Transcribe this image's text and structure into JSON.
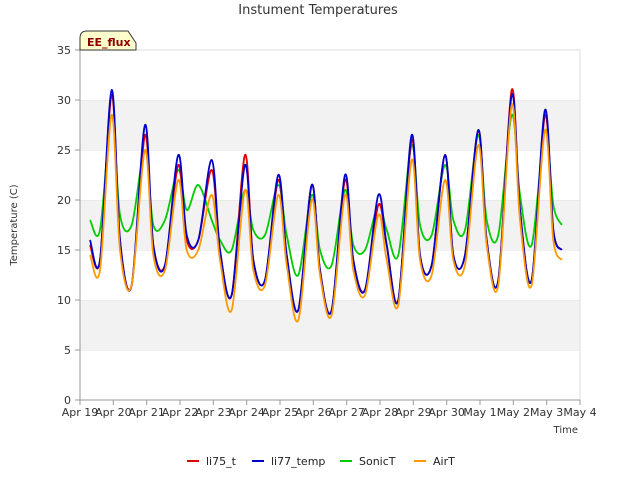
{
  "chart_data": {
    "type": "line",
    "title": "Instument Temperatures",
    "xlabel": "Time",
    "ylabel": "Temperature (C)",
    "badge": "EE_flux",
    "ylim": [
      0,
      35
    ],
    "yticks": [
      0,
      5,
      10,
      15,
      20,
      25,
      30,
      35
    ],
    "xlim": [
      0,
      15
    ],
    "xticks": [
      0,
      1,
      2,
      3,
      4,
      5,
      6,
      7,
      8,
      9,
      10,
      11,
      12,
      13,
      14,
      15
    ],
    "xtick_labels": [
      "Apr 19",
      "Apr 20",
      "Apr 21",
      "Apr 22",
      "Apr 23",
      "Apr 24",
      "Apr 25",
      "Apr 26",
      "Apr 27",
      "Apr 28",
      "Apr 29",
      "Apr 30",
      "May 1",
      "May 2",
      "May 3",
      "May 4"
    ],
    "grid": "horizontal bands",
    "legend_position": "bottom",
    "x": [
      0.3,
      0.6,
      0.95,
      1.2,
      1.55,
      1.95,
      2.2,
      2.55,
      2.95,
      3.2,
      3.55,
      3.95,
      4.2,
      4.55,
      4.95,
      5.2,
      5.55,
      5.95,
      6.2,
      6.55,
      6.95,
      7.2,
      7.55,
      7.95,
      8.2,
      8.55,
      8.95,
      9.2,
      9.55,
      9.95,
      10.2,
      10.55,
      10.95,
      11.2,
      11.55,
      11.95,
      12.2,
      12.55,
      12.95,
      13.2,
      13.55,
      13.95,
      14.2,
      14.45
    ],
    "series": [
      {
        "name": "li75_t",
        "color": "#dd0000",
        "values": [
          15.5,
          14.0,
          30.5,
          16.0,
          11.5,
          26.5,
          15.5,
          13.5,
          23.5,
          16.0,
          16.0,
          23.0,
          15.0,
          10.5,
          24.5,
          14.0,
          12.0,
          22.0,
          14.5,
          9.0,
          21.5,
          13.0,
          9.0,
          22.0,
          14.0,
          11.0,
          19.5,
          15.5,
          10.0,
          26.0,
          14.5,
          13.5,
          24.5,
          14.5,
          14.5,
          27.0,
          16.0,
          12.0,
          31.0,
          19.0,
          12.0,
          28.5,
          17.0,
          15.0
        ]
      },
      {
        "name": "li77_temp",
        "color": "#0000cc",
        "values": [
          16.0,
          14.0,
          31.0,
          16.0,
          11.5,
          27.5,
          15.5,
          13.5,
          24.5,
          16.5,
          16.0,
          24.0,
          15.0,
          10.5,
          23.5,
          14.0,
          12.0,
          22.5,
          14.5,
          9.0,
          21.5,
          13.0,
          9.0,
          22.5,
          14.0,
          11.0,
          20.5,
          15.5,
          10.0,
          26.5,
          14.5,
          13.5,
          24.5,
          14.5,
          14.5,
          27.0,
          16.0,
          12.0,
          30.5,
          19.0,
          12.0,
          29.0,
          17.0,
          15.0
        ]
      },
      {
        "name": "SonicT",
        "color": "#00cc00",
        "values": [
          18.0,
          17.0,
          28.5,
          18.5,
          17.5,
          25.0,
          17.5,
          18.0,
          23.0,
          19.0,
          21.5,
          18.0,
          16.0,
          15.0,
          21.0,
          17.0,
          16.5,
          21.5,
          16.5,
          12.5,
          20.5,
          15.0,
          13.5,
          21.0,
          15.5,
          15.0,
          19.5,
          17.0,
          14.5,
          25.5,
          17.5,
          16.5,
          23.5,
          18.0,
          17.0,
          26.5,
          18.0,
          16.5,
          28.5,
          20.5,
          15.5,
          27.0,
          19.5,
          17.5
        ]
      },
      {
        "name": "AirT",
        "color": "#ff9900",
        "values": [
          14.5,
          13.0,
          28.5,
          15.0,
          11.5,
          25.0,
          14.5,
          13.0,
          22.0,
          15.0,
          15.0,
          20.5,
          14.0,
          9.0,
          21.0,
          13.0,
          11.5,
          20.5,
          13.5,
          8.0,
          20.0,
          12.5,
          8.5,
          20.5,
          13.0,
          10.5,
          18.5,
          14.0,
          9.5,
          24.0,
          14.0,
          12.5,
          22.0,
          14.0,
          13.5,
          25.5,
          15.5,
          11.5,
          29.5,
          18.0,
          11.5,
          27.0,
          16.0,
          14.0
        ]
      }
    ]
  }
}
